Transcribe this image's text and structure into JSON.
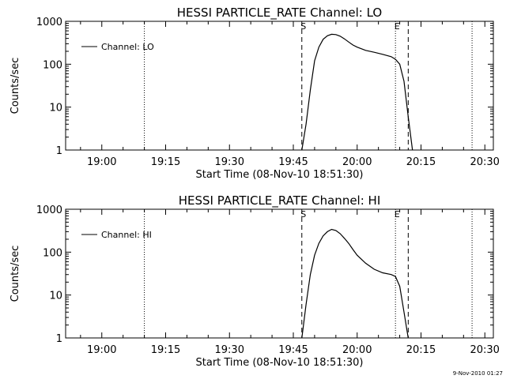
{
  "footer": {
    "timestamp": "9-Nov-2010 01:27"
  },
  "chart_data": [
    {
      "type": "line",
      "title": "HESSI PARTICLE_RATE Channel: LO",
      "xlabel": "Start Time (08-Nov-10 18:51:30)",
      "ylabel": "Counts/sec",
      "y_scale": "log",
      "xlim": [
        "18:51:30",
        "20:32"
      ],
      "ylim": [
        1,
        1000
      ],
      "x_ticks": [
        "19:00",
        "19:15",
        "19:30",
        "19:45",
        "20:00",
        "20:15",
        "20:30"
      ],
      "y_ticks": [
        "1",
        "10",
        "100",
        "1000"
      ],
      "legend": {
        "placement": "top-left",
        "label": "Channel: LO"
      },
      "markers": [
        {
          "time": "19:10",
          "style": "dotted",
          "label": ""
        },
        {
          "time": "19:47",
          "style": "dashed",
          "label": "S"
        },
        {
          "time": "20:09",
          "style": "dotted",
          "label": "E"
        },
        {
          "time": "20:12",
          "style": "dashed",
          "label": ""
        },
        {
          "time": "20:27",
          "style": "dotted",
          "label": ""
        }
      ],
      "series": [
        {
          "name": "Channel: LO",
          "x": [
            "19:47",
            "19:48",
            "19:49",
            "19:50",
            "19:51",
            "19:52",
            "19:53",
            "19:54",
            "19:55",
            "19:56",
            "19:57",
            "19:58",
            "19:59",
            "20:00",
            "20:02",
            "20:04",
            "20:06",
            "20:08",
            "20:09",
            "20:10",
            "20:11",
            "20:12",
            "20:13"
          ],
          "y": [
            1,
            4,
            25,
            120,
            250,
            380,
            460,
            500,
            490,
            450,
            390,
            330,
            280,
            250,
            210,
            190,
            170,
            150,
            130,
            100,
            40,
            6,
            1
          ]
        }
      ]
    },
    {
      "type": "line",
      "title": "HESSI PARTICLE_RATE Channel: HI",
      "xlabel": "Start Time (08-Nov-10 18:51:30)",
      "ylabel": "Counts/sec",
      "y_scale": "log",
      "xlim": [
        "18:51:30",
        "20:32"
      ],
      "ylim": [
        1,
        1000
      ],
      "x_ticks": [
        "19:00",
        "19:15",
        "19:30",
        "19:45",
        "20:00",
        "20:15",
        "20:30"
      ],
      "y_ticks": [
        "1",
        "10",
        "100",
        "1000"
      ],
      "legend": {
        "placement": "top-left",
        "label": "Channel: HI"
      },
      "markers": [
        {
          "time": "19:10",
          "style": "dotted",
          "label": ""
        },
        {
          "time": "19:47",
          "style": "dashed",
          "label": "S"
        },
        {
          "time": "20:09",
          "style": "dotted",
          "label": "E"
        },
        {
          "time": "20:12",
          "style": "dashed",
          "label": ""
        },
        {
          "time": "20:27",
          "style": "dotted",
          "label": ""
        }
      ],
      "series": [
        {
          "name": "Channel: HI",
          "x": [
            "19:47",
            "19:48",
            "19:49",
            "19:50",
            "19:51",
            "19:52",
            "19:53",
            "19:54",
            "19:55",
            "19:56",
            "19:57",
            "19:58",
            "19:59",
            "20:00",
            "20:02",
            "20:04",
            "20:06",
            "20:08",
            "20:09",
            "20:10",
            "20:11",
            "20:12"
          ],
          "y": [
            1,
            6,
            30,
            85,
            160,
            240,
            300,
            340,
            320,
            270,
            210,
            160,
            115,
            85,
            55,
            40,
            33,
            30,
            27,
            16,
            4,
            1
          ]
        }
      ]
    }
  ]
}
